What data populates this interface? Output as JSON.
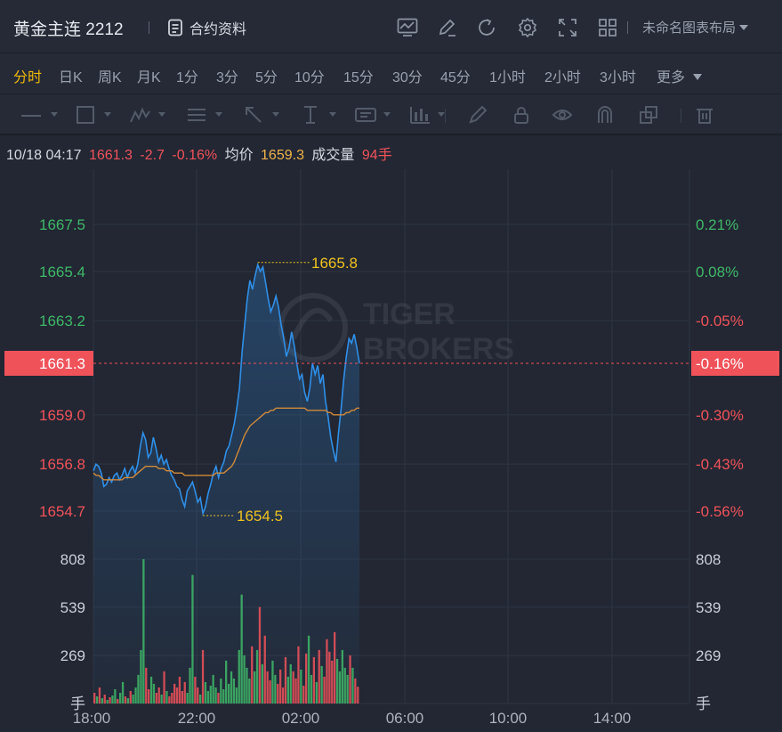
{
  "header": {
    "title": "黄金主连 2212",
    "contract_info": "合约资料",
    "layout_name": "未命名图表布局",
    "tool_icons": [
      "chart-template-icon",
      "edit-icon",
      "refresh-icon",
      "settings-icon",
      "fullscreen-icon",
      "grid-layout-icon"
    ]
  },
  "periods": {
    "items": [
      "分时",
      "日K",
      "周K",
      "月K",
      "1分",
      "3分",
      "5分",
      "10分",
      "15分",
      "30分",
      "45分",
      "1小时",
      "2小时",
      "3小时",
      "更多"
    ],
    "active": "分时"
  },
  "drawing_tools": [
    "line-icon",
    "rectangle-icon",
    "wave-icon",
    "fib-icon",
    "arrow-icon",
    "vertical-line-icon",
    "text-label-icon",
    "bar-pattern-icon",
    "brush-icon",
    "lock-icon",
    "eye-icon",
    "magnet-icon",
    "clone-icon",
    "trash-icon"
  ],
  "info": {
    "datetime": "10/18 04:17",
    "price": "1661.3",
    "change": "-2.7",
    "change_pct": "-0.16%",
    "avg_label": "均价",
    "avg_price": "1659.3",
    "volume_label": "成交量",
    "volume": "94手"
  },
  "watermark": {
    "line1": "TIGER",
    "line2": "BROKERS"
  },
  "colors": {
    "up": "#3fb868",
    "down": "#f0525a",
    "price_line": "#2f8fe8",
    "avg_line": "#d08a3a",
    "annotation": "#f0c21f",
    "background": "#222733"
  },
  "chart_data": {
    "type": "line",
    "price_axis": {
      "ticks": [
        "1667.5",
        "1665.4",
        "1663.2",
        "1661.3",
        "1659.0",
        "1656.8",
        "1654.7"
      ],
      "ylim": [
        1654.7,
        1667.5
      ],
      "current": "1661.3"
    },
    "pct_axis": {
      "ticks": [
        "0.21%",
        "0.08%",
        "-0.05%",
        "-0.16%",
        "-0.30%",
        "-0.43%",
        "-0.56%"
      ],
      "current": "-0.16%"
    },
    "volume_axis": {
      "ticks": [
        "808",
        "539",
        "269"
      ],
      "unit": "手",
      "ylim": [
        0,
        808
      ]
    },
    "time_axis": {
      "labels": [
        "18:00",
        "22:00",
        "02:00",
        "06:00",
        "10:00",
        "14:00"
      ]
    },
    "annotations": {
      "high": "1665.8",
      "low": "1654.5"
    },
    "series": [
      {
        "name": "price",
        "values": [
          1656.5,
          1656.8,
          1656.7,
          1656.4,
          1655.8,
          1655.9,
          1656.2,
          1656.0,
          1656.3,
          1656.4,
          1656.1,
          1656.3,
          1656.6,
          1656.2,
          1656.5,
          1656.7,
          1656.4,
          1656.8,
          1657.6,
          1658.2,
          1657.9,
          1657.1,
          1657.3,
          1658.0,
          1657.5,
          1656.9,
          1657.2,
          1656.8,
          1657.0,
          1656.6,
          1656.3,
          1656.1,
          1655.8,
          1655.7,
          1655.2,
          1654.9,
          1655.6,
          1655.8,
          1656.0,
          1655.6,
          1655.1,
          1655.3,
          1654.6,
          1654.9,
          1655.5,
          1655.9,
          1656.4,
          1656.7,
          1656.2,
          1656.6,
          1656.9,
          1657.4,
          1657.6,
          1658.1,
          1658.6,
          1659.3,
          1660.2,
          1661.8,
          1663.0,
          1664.2,
          1665.0,
          1664.6,
          1665.2,
          1665.7,
          1665.4,
          1665.6,
          1664.9,
          1664.2,
          1663.6,
          1663.9,
          1664.3,
          1663.8,
          1663.0,
          1662.4,
          1661.6,
          1662.0,
          1662.7,
          1662.1,
          1661.3,
          1660.6,
          1660.8,
          1660.0,
          1659.6,
          1660.2,
          1661.3,
          1660.8,
          1661.2,
          1660.4,
          1660.8,
          1659.6,
          1658.9,
          1658.0,
          1657.4,
          1656.9,
          1658.2,
          1659.3,
          1660.6,
          1661.6,
          1662.4,
          1662.2,
          1662.6,
          1662.0,
          1661.3
        ]
      },
      {
        "name": "average",
        "values": [
          1656.4,
          1656.3,
          1656.3,
          1656.2,
          1656.1,
          1656.1,
          1656.1,
          1656.1,
          1656.1,
          1656.1,
          1656.1,
          1656.1,
          1656.2,
          1656.2,
          1656.2,
          1656.2,
          1656.3,
          1656.4,
          1656.5,
          1656.6,
          1656.7,
          1656.7,
          1656.7,
          1656.7,
          1656.7,
          1656.6,
          1656.6,
          1656.6,
          1656.5,
          1656.5,
          1656.5,
          1656.4,
          1656.4,
          1656.4,
          1656.4,
          1656.3,
          1656.3,
          1656.3,
          1656.3,
          1656.3,
          1656.3,
          1656.3,
          1656.3,
          1656.3,
          1656.3,
          1656.3,
          1656.3,
          1656.4,
          1656.4,
          1656.4,
          1656.4,
          1656.5,
          1656.6,
          1656.7,
          1656.9,
          1657.2,
          1657.5,
          1657.8,
          1658.1,
          1658.3,
          1658.5,
          1658.6,
          1658.7,
          1658.8,
          1658.9,
          1659.0,
          1659.1,
          1659.1,
          1659.2,
          1659.2,
          1659.3,
          1659.3,
          1659.3,
          1659.3,
          1659.3,
          1659.3,
          1659.3,
          1659.3,
          1659.3,
          1659.3,
          1659.3,
          1659.3,
          1659.2,
          1659.2,
          1659.2,
          1659.2,
          1659.2,
          1659.2,
          1659.2,
          1659.2,
          1659.1,
          1659.1,
          1659.0,
          1659.0,
          1659.0,
          1659.0,
          1659.0,
          1659.1,
          1659.1,
          1659.2,
          1659.2,
          1659.3,
          1659.3
        ]
      }
    ],
    "volume_values": [
      60,
      40,
      90,
      30,
      50,
      20,
      35,
      45,
      80,
      25,
      60,
      120,
      40,
      30,
      70,
      50,
      90,
      160,
      300,
      808,
      200,
      80,
      150,
      110,
      60,
      90,
      50,
      180,
      70,
      40,
      60,
      110,
      90,
      150,
      70,
      120,
      60,
      200,
      720,
      150,
      90,
      50,
      300,
      120,
      70,
      100,
      160,
      90,
      60,
      140,
      80,
      240,
      110,
      180,
      140,
      90,
      300,
      610,
      270,
      200,
      140,
      320,
      180,
      300,
      540,
      220,
      380,
      180,
      130,
      240,
      160,
      110,
      190,
      90,
      260,
      150,
      220,
      180,
      140,
      320,
      190,
      100,
      280,
      380,
      160,
      260,
      120,
      300,
      210,
      150,
      360,
      290,
      240,
      400,
      250,
      180,
      300,
      200,
      160,
      270,
      200,
      140,
      94
    ],
    "volume_colors": [
      "d",
      "u",
      "d",
      "u",
      "d",
      "u",
      "d",
      "u",
      "u",
      "d",
      "u",
      "u",
      "d",
      "u",
      "d",
      "u",
      "u",
      "u",
      "u",
      "u",
      "d",
      "d",
      "u",
      "u",
      "d",
      "d",
      "u",
      "d",
      "u",
      "d",
      "d",
      "d",
      "d",
      "d",
      "d",
      "d",
      "u",
      "u",
      "u",
      "d",
      "d",
      "u",
      "d",
      "u",
      "u",
      "u",
      "u",
      "u",
      "d",
      "u",
      "u",
      "u",
      "u",
      "u",
      "u",
      "u",
      "u",
      "u",
      "u",
      "u",
      "u",
      "d",
      "u",
      "u",
      "d",
      "u",
      "d",
      "d",
      "d",
      "u",
      "u",
      "d",
      "d",
      "d",
      "d",
      "u",
      "u",
      "d",
      "d",
      "d",
      "u",
      "d",
      "d",
      "u",
      "u",
      "d",
      "u",
      "d",
      "u",
      "d",
      "d",
      "d",
      "d",
      "d",
      "u",
      "u",
      "u",
      "u",
      "u",
      "d",
      "u",
      "d",
      "d"
    ]
  }
}
